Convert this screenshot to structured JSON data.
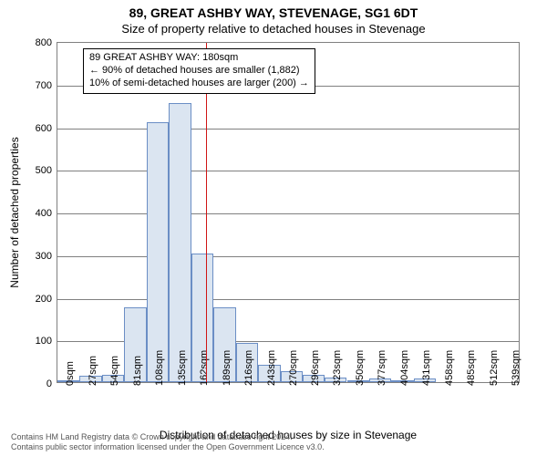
{
  "title": "89, GREAT ASHBY WAY, STEVENAGE, SG1 6DT",
  "subtitle": "Size of property relative to detached houses in Stevenage",
  "ylabel": "Number of detached properties",
  "xlabel": "Distribution of detached houses by size in Stevenage",
  "annotation": {
    "lines": [
      "89 GREAT ASHBY WAY: 180sqm",
      "← 90% of detached houses are smaller (1,882)",
      "10% of semi-detached houses are larger (200) →"
    ],
    "border_color": "#000000",
    "font_size": 11
  },
  "attribution": {
    "line1": "Contains HM Land Registry data © Crown copyright and database right 2024.",
    "line2": "Contains public sector information licensed under the Open Government Licence v3.0."
  },
  "chart": {
    "type": "histogram",
    "xlim": [
      0,
      560
    ],
    "ylim": [
      0,
      800
    ],
    "ytick_step": 100,
    "xtick_step": 27,
    "xtick_suffix": "sqm",
    "bin_width": 27,
    "bar_fill": "#dbe5f1",
    "bar_stroke": "#6b8ec5",
    "grid_color": "#808080",
    "background": "#ffffff",
    "marker_x": 180,
    "marker_color": "#d01515",
    "bins": [
      {
        "x": 0,
        "count": 3
      },
      {
        "x": 27,
        "count": 15
      },
      {
        "x": 54,
        "count": 18
      },
      {
        "x": 81,
        "count": 175
      },
      {
        "x": 108,
        "count": 610
      },
      {
        "x": 135,
        "count": 655
      },
      {
        "x": 162,
        "count": 302
      },
      {
        "x": 189,
        "count": 175
      },
      {
        "x": 216,
        "count": 92
      },
      {
        "x": 243,
        "count": 40
      },
      {
        "x": 270,
        "count": 25
      },
      {
        "x": 296,
        "count": 18
      },
      {
        "x": 323,
        "count": 10
      },
      {
        "x": 350,
        "count": 3
      },
      {
        "x": 377,
        "count": 8
      },
      {
        "x": 404,
        "count": 2
      },
      {
        "x": 431,
        "count": 8
      },
      {
        "x": 458,
        "count": 0
      },
      {
        "x": 485,
        "count": 0
      },
      {
        "x": 512,
        "count": 0
      },
      {
        "x": 539,
        "count": 0
      }
    ]
  },
  "style": {
    "title_fontsize": 14,
    "subtitle_fontsize": 13,
    "axis_label_fontsize": 12,
    "tick_fontsize": 11
  }
}
